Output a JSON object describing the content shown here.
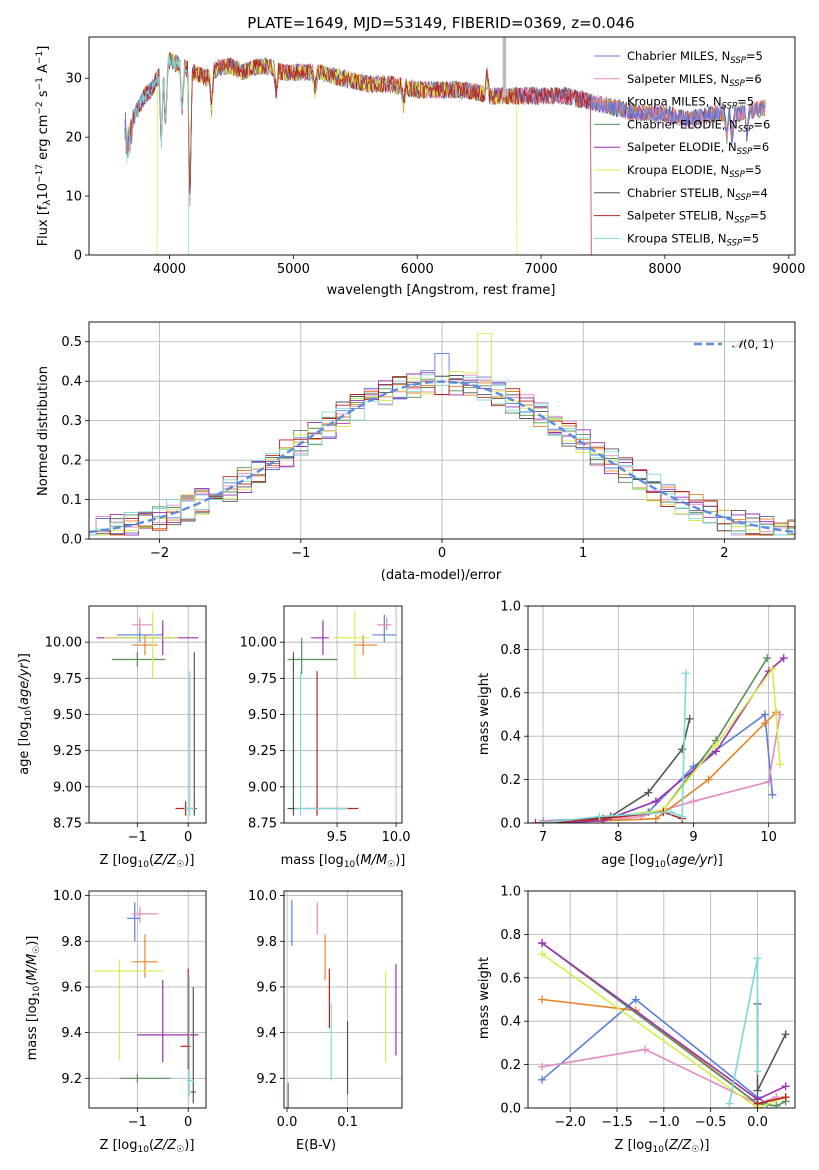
{
  "title": "PLATE=1649, MJD=53149, FIBERID=0369, z=0.046",
  "series": [
    {
      "name": "Chabrier MILES",
      "nssp": "5",
      "color": "#5b7fd6"
    },
    {
      "name": "Salpeter MILES",
      "nssp": "6",
      "color": "#e48bc0"
    },
    {
      "name": "Kroupa MILES",
      "nssp": "5",
      "color": "#e8832a"
    },
    {
      "name": "Chabrier ELODIE",
      "nssp": "6",
      "color": "#5a8f5a"
    },
    {
      "name": "Salpeter ELODIE",
      "nssp": "6",
      "color": "#9b2fb4"
    },
    {
      "name": "Kroupa ELODIE",
      "nssp": "5",
      "color": "#d7ec4a"
    },
    {
      "name": "Chabrier STELIB",
      "nssp": "4",
      "color": "#555555"
    },
    {
      "name": "Salpeter STELIB",
      "nssp": "5",
      "color": "#b5261e"
    },
    {
      "name": "Kroupa STELIB",
      "nssp": "5",
      "color": "#7fd8d8"
    }
  ],
  "chart_data": [
    {
      "type": "line",
      "panel": "spectrum",
      "xlabel": "wavelength [Angstrom, rest frame]",
      "ylabel": "Flux [f_λ 10^-17 erg cm^-2 s^-1 A^-1]",
      "xlim": [
        3350,
        9050
      ],
      "ylim": [
        0,
        37
      ],
      "xticks": [
        4000,
        5000,
        6000,
        7000,
        8000,
        9000
      ],
      "yticks": [
        0,
        10,
        20,
        30
      ],
      "grid": false,
      "legend": "top-right",
      "wave": [
        3650,
        3700,
        3750,
        3800,
        3850,
        3900,
        3950,
        4000,
        4100,
        4200,
        4300,
        4400,
        4500,
        4600,
        4700,
        4800,
        4900,
        5000,
        5200,
        5400,
        5600,
        5800,
        6000,
        6200,
        6400,
        6600,
        6800,
        7000,
        7200,
        7400,
        7600,
        7800,
        8000,
        8200,
        8400,
        8600,
        8800
      ],
      "flux": [
        20,
        23,
        25,
        27,
        28,
        30,
        31,
        33,
        32,
        31,
        30,
        32,
        32,
        31,
        32,
        32,
        31,
        31,
        31,
        30,
        29,
        29,
        28,
        28,
        28,
        27,
        27,
        27,
        27,
        26,
        25,
        24,
        24,
        23,
        24,
        24,
        25
      ],
      "cutoffs": [
        {
          "series": "Kroupa ELODIE",
          "start": 3900,
          "end": 6800
        },
        {
          "series": "Salpeter STELIB",
          "start": 3650,
          "end": 7400
        },
        {
          "series": "Kroupa STELIB",
          "start": 3650,
          "end": 4160
        }
      ]
    },
    {
      "type": "histogram",
      "panel": "residuals",
      "xlabel": "(data-model)/error",
      "ylabel": "Normed distribution",
      "xlim": [
        -2.5,
        2.5
      ],
      "ylim": [
        0,
        0.55
      ],
      "xticks": [
        -2,
        -1,
        0,
        1,
        2
      ],
      "yticks": [
        0.0,
        0.1,
        0.2,
        0.3,
        0.4,
        0.5
      ],
      "grid": true,
      "legend": "top-right",
      "reference": {
        "name": "N(0,1)",
        "color": "#5b8de0"
      },
      "bin_width": 0.1,
      "peak_bins": [
        {
          "series": "Kroupa ELODIE",
          "x": 0.35,
          "y": 0.52
        },
        {
          "series": "Chabrier MILES",
          "x": 0.05,
          "y": 0.47
        }
      ]
    },
    {
      "type": "errorbar",
      "panel": "age-vs-Z",
      "xlabel": "Z [log10(Z/Z☉)]",
      "ylabel": "age  [log10(age/yr)]",
      "xlim": [
        -1.95,
        0.35
      ],
      "ylim": [
        8.75,
        10.25
      ],
      "xticks": [
        -1,
        0
      ],
      "yticks": [
        8.75,
        9.0,
        9.25,
        9.5,
        9.75,
        10.0
      ],
      "points": [
        {
          "s": 0,
          "x": -0.95,
          "y": 10.05,
          "xlo": 0.45,
          "xhi": 0.45,
          "ylo": 0.05,
          "yhi": 0.05
        },
        {
          "s": 1,
          "x": -0.95,
          "y": 10.12,
          "xlo": 0.15,
          "xhi": 0.25,
          "ylo": 0.05,
          "yhi": 0.05
        },
        {
          "s": 2,
          "x": -0.85,
          "y": 9.98,
          "xlo": 0.25,
          "xhi": 0.25,
          "ylo": 0.07,
          "yhi": 0.07
        },
        {
          "s": 3,
          "x": -1.0,
          "y": 9.88,
          "xlo": 0.5,
          "xhi": 0.55,
          "ylo": 0.05,
          "yhi": 0.05
        },
        {
          "s": 4,
          "x": -0.5,
          "y": 10.03,
          "xlo": 1.3,
          "xhi": 0.7,
          "ylo": 0.12,
          "yhi": 0.12
        },
        {
          "s": 5,
          "x": -0.7,
          "y": 10.03,
          "xlo": 0.95,
          "xhi": 0.5,
          "ylo": 0.28,
          "yhi": 0.18
        },
        {
          "s": 6,
          "x": 0.12,
          "y": 8.85,
          "xlo": 0.05,
          "xhi": 0.05,
          "ylo": 0.05,
          "yhi": 1.08
        },
        {
          "s": 7,
          "x": -0.05,
          "y": 8.85,
          "xlo": 0.2,
          "xhi": 0.15,
          "ylo": 0.05,
          "yhi": 0.05
        },
        {
          "s": 8,
          "x": 0.03,
          "y": 8.85,
          "xlo": 0.1,
          "xhi": 0.1,
          "ylo": 0.05,
          "yhi": 0.95
        }
      ]
    },
    {
      "type": "errorbar",
      "panel": "age-vs-mass",
      "xlabel": "mass [log10(M/M☉)]",
      "ylabel": "",
      "xlim": [
        9.05,
        10.05
      ],
      "ylim": [
        8.75,
        10.25
      ],
      "xticks": [
        9.5,
        10.0
      ],
      "yticks": [
        8.75,
        9.0,
        9.25,
        9.5,
        9.75,
        10.0
      ],
      "points": [
        {
          "s": 0,
          "x": 9.9,
          "y": 10.05,
          "xlo": 0.1,
          "xhi": 0.1,
          "ylo": 0.05,
          "yhi": 0.14
        },
        {
          "s": 1,
          "x": 9.92,
          "y": 10.12,
          "xlo": 0.08,
          "xhi": 0.04,
          "ylo": 0.04,
          "yhi": 0.05
        },
        {
          "s": 2,
          "x": 9.72,
          "y": 9.98,
          "xlo": 0.08,
          "xhi": 0.12,
          "ylo": 0.07,
          "yhi": 0.07
        },
        {
          "s": 3,
          "x": 9.2,
          "y": 9.88,
          "xlo": 0.12,
          "xhi": 0.3,
          "ylo": 0.1,
          "yhi": 0.15
        },
        {
          "s": 4,
          "x": 9.38,
          "y": 10.03,
          "xlo": 0.1,
          "xhi": 0.05,
          "ylo": 0.12,
          "yhi": 0.12
        },
        {
          "s": 5,
          "x": 9.65,
          "y": 10.03,
          "xlo": 0.18,
          "xhi": 0.12,
          "ylo": 0.28,
          "yhi": 0.18
        },
        {
          "s": 6,
          "x": 9.13,
          "y": 8.85,
          "xlo": 0.05,
          "xhi": 0.05,
          "ylo": 0.05,
          "yhi": 1.08
        },
        {
          "s": 7,
          "x": 9.33,
          "y": 8.85,
          "xlo": 0.1,
          "xhi": 0.35,
          "ylo": 0.05,
          "yhi": 0.95
        },
        {
          "s": 8,
          "x": 9.19,
          "y": 8.85,
          "xlo": 0.05,
          "xhi": 0.4,
          "ylo": 0.05,
          "yhi": 0.95
        }
      ]
    },
    {
      "type": "line",
      "panel": "weight-vs-age",
      "xlabel": "age  [log10(age/yr)]",
      "ylabel": "mass weight",
      "xlim": [
        6.8,
        10.35
      ],
      "ylim": [
        0,
        1.0
      ],
      "xticks": [
        7,
        8,
        9,
        10
      ],
      "yticks": [
        0.0,
        0.2,
        0.4,
        0.6,
        0.8,
        1.0
      ],
      "grid": true,
      "series": [
        {
          "s": 0,
          "x": [
            7.0,
            7.8,
            8.4,
            9.0,
            9.95,
            10.05
          ],
          "y": [
            0.01,
            0.02,
            0.05,
            0.26,
            0.5,
            0.13
          ]
        },
        {
          "s": 1,
          "x": [
            7.0,
            7.8,
            8.3,
            9.0,
            10.0,
            10.15
          ],
          "y": [
            0.01,
            0.01,
            0.03,
            0.1,
            0.19,
            0.5
          ]
        },
        {
          "s": 2,
          "x": [
            7.0,
            7.8,
            8.5,
            9.2,
            9.95,
            10.1
          ],
          "y": [
            0.0,
            0.01,
            0.02,
            0.2,
            0.46,
            0.51
          ]
        },
        {
          "s": 3,
          "x": [
            7.0,
            7.8,
            8.6,
            9.3,
            9.98
          ],
          "y": [
            0.0,
            0.02,
            0.06,
            0.38,
            0.76
          ]
        },
        {
          "s": 4,
          "x": [
            6.9,
            7.8,
            8.5,
            9.3,
            10.0,
            10.2
          ],
          "y": [
            0.0,
            0.01,
            0.1,
            0.33,
            0.7,
            0.76
          ]
        },
        {
          "s": 5,
          "x": [
            7.0,
            7.8,
            8.6,
            9.3,
            10.05,
            10.15
          ],
          "y": [
            0.0,
            0.02,
            0.06,
            0.36,
            0.71,
            0.27
          ]
        },
        {
          "s": 6,
          "x": [
            7.0,
            7.9,
            8.4,
            8.85,
            8.95
          ],
          "y": [
            0.0,
            0.03,
            0.14,
            0.34,
            0.48
          ]
        },
        {
          "s": 7,
          "x": [
            7.0,
            7.8,
            8.6,
            8.85
          ],
          "y": [
            0.0,
            0.02,
            0.05,
            0.02
          ]
        },
        {
          "s": 8,
          "x": [
            7.0,
            7.75,
            8.7,
            8.85,
            8.9
          ],
          "y": [
            0.0,
            0.03,
            0.05,
            0.03,
            0.69
          ]
        }
      ]
    },
    {
      "type": "errorbar",
      "panel": "mass-vs-Z",
      "xlabel": "Z [log10(Z/Z☉)]",
      "ylabel": "mass [log10(M/M☉)]",
      "xlim": [
        -1.95,
        0.35
      ],
      "ylim": [
        9.07,
        10.02
      ],
      "xticks": [
        -1,
        0
      ],
      "yticks": [
        9.2,
        9.4,
        9.6,
        9.8,
        10.0
      ],
      "points": [
        {
          "s": 0,
          "x": -1.05,
          "y": 9.9,
          "xlo": 0.15,
          "xhi": 0.1,
          "ylo": 0.1,
          "yhi": 0.07
        },
        {
          "s": 1,
          "x": -0.95,
          "y": 9.92,
          "xlo": 0.15,
          "xhi": 0.35,
          "ylo": 0.04,
          "yhi": 0.03
        },
        {
          "s": 2,
          "x": -0.85,
          "y": 9.71,
          "xlo": 0.25,
          "xhi": 0.25,
          "ylo": 0.07,
          "yhi": 0.12
        },
        {
          "s": 3,
          "x": -1.0,
          "y": 9.2,
          "xlo": 0.35,
          "xhi": 0.65,
          "ylo": 0.02,
          "yhi": 0.02
        },
        {
          "s": 4,
          "x": -0.5,
          "y": 9.39,
          "xlo": 0.5,
          "xhi": 0.7,
          "ylo": 0.12,
          "yhi": 0.24
        },
        {
          "s": 5,
          "x": -1.35,
          "y": 9.67,
          "xlo": 0.5,
          "xhi": 0.85,
          "ylo": 0.39,
          "yhi": 0.05
        },
        {
          "s": 6,
          "x": 0.1,
          "y": 9.14,
          "xlo": 0.05,
          "xhi": 0.05,
          "ylo": 0.05,
          "yhi": 0.46
        },
        {
          "s": 7,
          "x": 0.0,
          "y": 9.34,
          "xlo": 0.15,
          "xhi": 0.05,
          "ylo": 0.1,
          "yhi": 0.34
        },
        {
          "s": 8,
          "x": 0.02,
          "y": 9.19,
          "xlo": 0.05,
          "xhi": 0.1,
          "ylo": 0.07,
          "yhi": 0.46
        }
      ]
    },
    {
      "type": "errorbar",
      "panel": "mass-vs-ebv",
      "xlabel": "E(B-V)",
      "ylabel": "",
      "xlim": [
        -0.005,
        0.19
      ],
      "ylim": [
        9.07,
        10.02
      ],
      "xticks": [
        0.0,
        0.1
      ],
      "yticks": [
        9.2,
        9.4,
        9.6,
        9.8,
        10.0
      ],
      "points": [
        {
          "s": 0,
          "x": 0.008,
          "y": 9.88,
          "ylo": 0.1,
          "yhi": 0.1
        },
        {
          "s": 1,
          "x": 0.05,
          "y": 9.9,
          "ylo": 0.07,
          "yhi": 0.07
        },
        {
          "s": 2,
          "x": 0.063,
          "y": 9.73,
          "ylo": 0.1,
          "yhi": 0.1
        },
        {
          "s": 3,
          "x": 0.002,
          "y": 9.12,
          "ylo": 0.06,
          "yhi": 0.06
        },
        {
          "s": 4,
          "x": 0.18,
          "y": 9.5,
          "ylo": 0.2,
          "yhi": 0.2
        },
        {
          "s": 5,
          "x": 0.163,
          "y": 9.47,
          "ylo": 0.2,
          "yhi": 0.2
        },
        {
          "s": 6,
          "x": 0.1,
          "y": 9.29,
          "ylo": 0.16,
          "yhi": 0.16
        },
        {
          "s": 7,
          "x": 0.07,
          "y": 9.55,
          "ylo": 0.13,
          "yhi": 0.13
        },
        {
          "s": 8,
          "x": 0.073,
          "y": 9.36,
          "ylo": 0.17,
          "yhi": 0.17
        }
      ]
    },
    {
      "type": "line",
      "panel": "weight-vs-Z",
      "xlabel": "Z [log10(Z/Z☉)]",
      "ylabel": "mass weight",
      "xlim": [
        -2.45,
        0.4
      ],
      "ylim": [
        0,
        1.0
      ],
      "xticks": [
        -2.0,
        -1.5,
        -1.0,
        -0.5,
        0.0
      ],
      "yticks": [
        0.0,
        0.2,
        0.4,
        0.6,
        0.8,
        1.0
      ],
      "grid": true,
      "series": [
        {
          "s": 0,
          "x": [
            -2.3,
            -1.3,
            0.0,
            0.1
          ],
          "y": [
            0.13,
            0.5,
            0.05,
            0.02
          ]
        },
        {
          "s": 1,
          "x": [
            -2.3,
            -1.2,
            0.0,
            0.2
          ],
          "y": [
            0.19,
            0.27,
            0.02,
            0.05
          ]
        },
        {
          "s": 2,
          "x": [
            -2.3,
            -1.3,
            0.0,
            0.3
          ],
          "y": [
            0.5,
            0.45,
            0.02,
            0.05
          ]
        },
        {
          "s": 3,
          "x": [
            -2.3,
            0.0,
            0.2,
            0.3
          ],
          "y": [
            0.76,
            0.02,
            0.01,
            0.03
          ]
        },
        {
          "s": 4,
          "x": [
            -2.3,
            0.0,
            0.3
          ],
          "y": [
            0.76,
            0.04,
            0.1
          ]
        },
        {
          "s": 5,
          "x": [
            -2.3,
            0.0,
            0.3
          ],
          "y": [
            0.71,
            0.0,
            0.05
          ]
        },
        {
          "s": 6,
          "x": [
            0.0,
            0.0,
            0.3
          ],
          "y": [
            0.48,
            0.08,
            0.34
          ]
        },
        {
          "s": 7,
          "x": [
            0.0,
            0.3
          ],
          "y": [
            0.02,
            0.05
          ]
        },
        {
          "s": 8,
          "x": [
            -0.3,
            0.0,
            0.0
          ],
          "y": [
            0.02,
            0.69,
            0.17
          ]
        }
      ]
    }
  ]
}
